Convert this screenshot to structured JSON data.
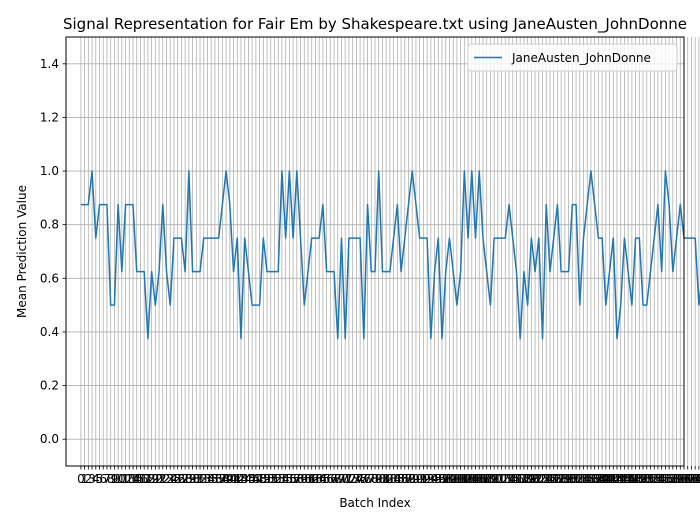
{
  "chart_data": {
    "type": "line",
    "title": "Signal Representation for Fair Em by Shakespeare.txt using JaneAusten_JohnDonne",
    "xlabel": "Batch Index",
    "ylabel": "Mean Prediction Value",
    "xlim": [
      -4,
      162
    ],
    "ylim": [
      -0.1,
      1.5
    ],
    "yticks": [
      "0.0",
      "0.2",
      "0.4",
      "0.6",
      "0.8",
      "1.0",
      "1.2",
      "1.4"
    ],
    "grid": true,
    "legend": "top-right",
    "line_color": "#1f77b4",
    "series": [
      {
        "name": "JaneAusten_JohnDonne",
        "values": [
          0.875,
          0.875,
          0.875,
          1.0,
          0.75,
          0.875,
          0.875,
          0.875,
          0.5,
          0.5,
          0.875,
          0.625,
          0.875,
          0.875,
          0.875,
          0.625,
          0.625,
          0.625,
          0.375,
          0.625,
          0.5,
          0.625,
          0.875,
          0.625,
          0.5,
          0.75,
          0.75,
          0.75,
          0.625,
          1.0,
          0.625,
          0.625,
          0.625,
          0.75,
          0.75,
          0.75,
          0.75,
          0.75,
          0.875,
          1.0,
          0.875,
          0.625,
          0.75,
          0.375,
          0.75,
          0.625,
          0.5,
          0.5,
          0.5,
          0.75,
          0.625,
          0.625,
          0.625,
          0.625,
          1.0,
          0.75,
          1.0,
          0.75,
          1.0,
          0.75,
          0.5,
          0.625,
          0.75,
          0.75,
          0.75,
          0.875,
          0.625,
          0.625,
          0.625,
          0.375,
          0.75,
          0.375,
          0.75,
          0.75,
          0.75,
          0.75,
          0.375,
          0.875,
          0.625,
          0.625,
          1.0,
          0.625,
          0.625,
          0.625,
          0.75,
          0.875,
          0.625,
          0.75,
          0.875,
          1.0,
          0.875,
          0.75,
          0.75,
          0.75,
          0.375,
          0.625,
          0.75,
          0.375,
          0.625,
          0.75,
          0.625,
          0.5,
          0.625,
          1.0,
          0.75,
          1.0,
          0.75,
          1.0,
          0.75,
          0.625,
          0.5,
          0.75,
          0.75,
          0.75,
          0.75,
          0.875,
          0.75,
          0.625,
          0.375,
          0.625,
          0.5,
          0.75,
          0.625,
          0.75,
          0.375,
          0.875,
          0.625,
          0.75,
          0.875,
          0.625,
          0.625,
          0.625,
          0.875,
          0.875,
          0.5,
          0.75,
          0.875,
          1.0,
          0.875,
          0.75,
          0.75,
          0.5,
          0.625,
          0.75,
          0.375,
          0.5,
          0.75,
          0.625,
          0.5,
          0.75,
          0.75,
          0.5,
          0.5,
          0.625,
          0.75,
          0.875,
          0.625,
          1.0,
          0.875,
          0.625,
          0.75,
          0.875,
          0.75,
          0.75,
          0.75,
          0.75,
          0.5,
          0.625,
          0.625,
          0.5
        ]
      }
    ]
  }
}
